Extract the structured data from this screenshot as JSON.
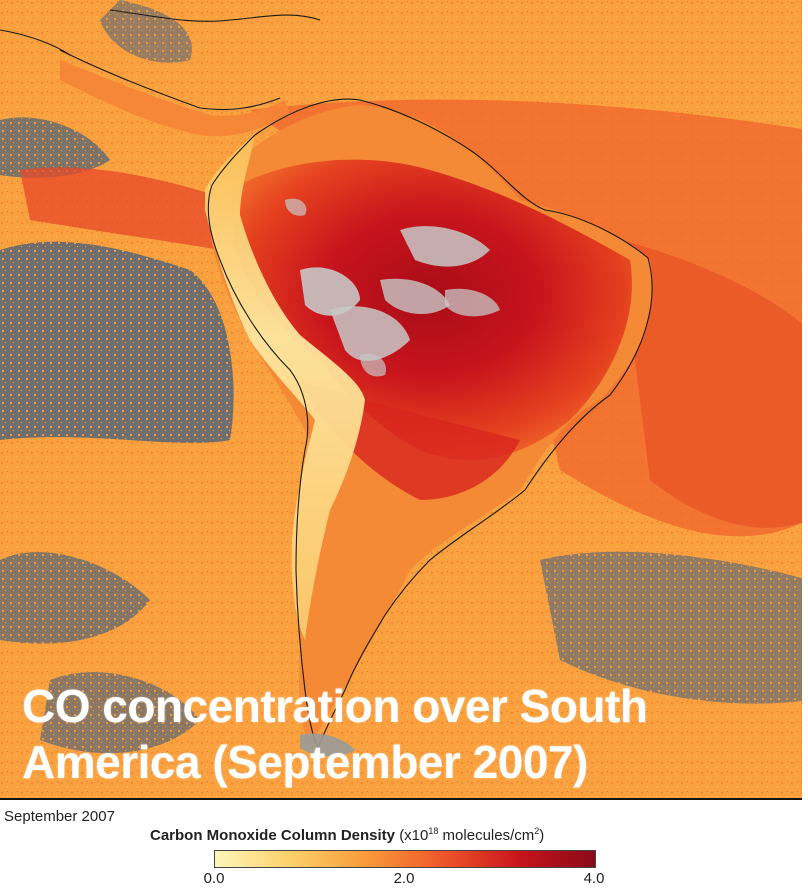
{
  "caption": {
    "line1": "CO concentration over South",
    "line2": "America (September 2007)"
  },
  "legend": {
    "date": "September 2007",
    "title": "Carbon Monoxide Column Density",
    "unit_prefix": "(x10",
    "unit_exp": "18",
    "unit_mid": " molecules/cm",
    "unit_sq": "2",
    "unit_suffix": ")",
    "ticks": [
      "0.0",
      "2.0",
      "4.0"
    ],
    "colors": [
      "#fff6b8",
      "#fdd06a",
      "#fa9a3a",
      "#f0562a",
      "#c8141c",
      "#8a0a18"
    ]
  },
  "map_colors": {
    "ocean_low": "#f9a43e",
    "ocean_mid": "#f88a38",
    "land_high": "#d8241e",
    "land_peak": "#b5121a",
    "andes_low": "#fde38a",
    "no_data": "#6e6e6e",
    "cloud": "#c8c8c8",
    "coast": "#1a1a1a"
  }
}
